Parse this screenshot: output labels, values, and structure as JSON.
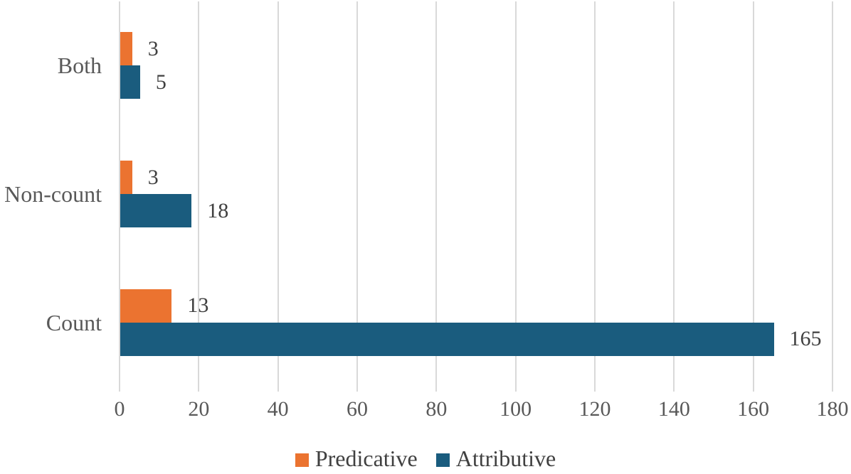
{
  "chart_data": {
    "type": "bar",
    "orientation": "horizontal",
    "title": "",
    "xlabel": "",
    "ylabel": "",
    "categories": [
      "Both",
      "Non-count",
      "Count"
    ],
    "series": [
      {
        "name": "Predicative",
        "color": "#EB7330",
        "values": [
          3,
          3,
          13
        ]
      },
      {
        "name": "Attributive",
        "color": "#1A5C7E",
        "values": [
          5,
          18,
          165
        ]
      }
    ],
    "xlim": [
      0,
      180
    ],
    "xticks": [
      0,
      20,
      40,
      60,
      80,
      100,
      120,
      140,
      160,
      180
    ],
    "grid": "vertical-gridlines-on",
    "gridline_color": "#D9D9D9",
    "axis_text_color": "#595959",
    "data_label_color": "#404040",
    "data_labels": "outside-end",
    "legend_position": "bottom-center"
  }
}
